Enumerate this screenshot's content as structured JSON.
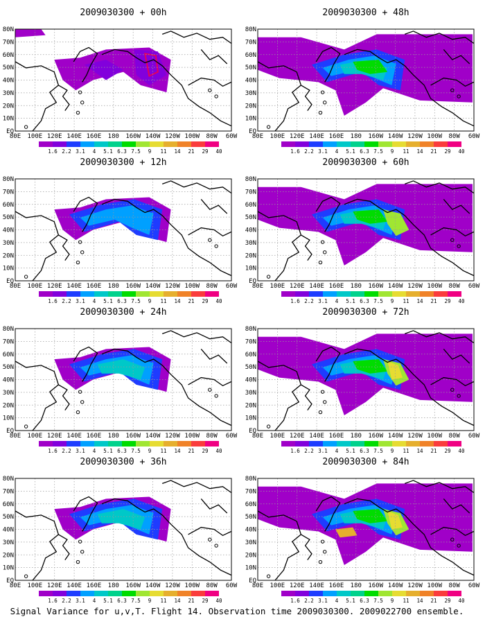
{
  "panels": [
    {
      "title": "2009030300 + 00h",
      "lead": "00h"
    },
    {
      "title": "2009030300 + 48h",
      "lead": "48h"
    },
    {
      "title": "2009030300 + 12h",
      "lead": "12h"
    },
    {
      "title": "2009030300 + 60h",
      "lead": "60h"
    },
    {
      "title": "2009030300 + 24h",
      "lead": "24h"
    },
    {
      "title": "2009030300 + 72h",
      "lead": "72h"
    },
    {
      "title": "2009030300 + 36h",
      "lead": "36h"
    },
    {
      "title": "2009030300 + 84h",
      "lead": "84h"
    }
  ],
  "lat_labels": [
    "80N",
    "70N",
    "60N",
    "50N",
    "40N",
    "30N",
    "20N",
    "10N",
    "EQ"
  ],
  "lon_labels": [
    "80E",
    "100E",
    "120E",
    "140E",
    "160E",
    "180",
    "160W",
    "140W",
    "120W",
    "100W",
    "80W",
    "60W"
  ],
  "colorbar": {
    "labels": [
      "1.6",
      "2.2",
      "3.1",
      "4",
      "5.1",
      "6.3",
      "7.5",
      "9",
      "11",
      "14",
      "21",
      "29",
      "40"
    ],
    "colors": [
      "#a000c8",
      "#8200dc",
      "#1e3cff",
      "#00a0ff",
      "#00c8c8",
      "#00d28c",
      "#00dc00",
      "#a0e632",
      "#e6dc32",
      "#e6af2d",
      "#f08228",
      "#fa3c3c",
      "#f00082"
    ]
  },
  "caption": "Signal Variance for u,v,T. Flight 14. Observation time 2009030300. 2009022700 ensemble."
}
